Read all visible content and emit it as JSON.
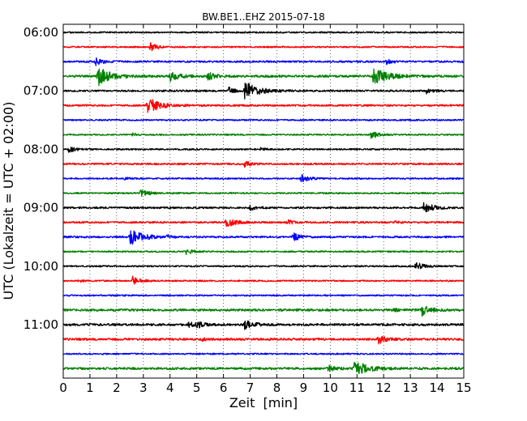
{
  "chart_data": {
    "type": "line",
    "title": "BW.BE1..EHZ 2015-07-18",
    "xlabel": "Zeit  [min]",
    "ylabel": "UTC (Lokalzeit = UTC + 02:00)",
    "xlim": [
      0,
      15
    ],
    "x_ticks": [
      "0",
      "1",
      "2",
      "3",
      "4",
      "5",
      "6",
      "7",
      "8",
      "9",
      "10",
      "11",
      "12",
      "13",
      "14",
      "15"
    ],
    "y_ticks": [
      {
        "row": 0,
        "label": "06:00"
      },
      {
        "row": 4,
        "label": "07:00"
      },
      {
        "row": 8,
        "label": "08:00"
      },
      {
        "row": 12,
        "label": "09:00"
      },
      {
        "row": 16,
        "label": "10:00"
      },
      {
        "row": 20,
        "label": "11:00"
      }
    ],
    "grid": "vertical dotted",
    "colors": [
      "#000000",
      "#ff0000",
      "#0000ff",
      "#008000"
    ],
    "series": [
      {
        "row": 0,
        "start": "06:00",
        "color": "#000000",
        "noise": 1.0,
        "events": []
      },
      {
        "row": 1,
        "start": "06:15",
        "color": "#ff0000",
        "noise": 1.0,
        "events": [
          [
            3.25,
            5
          ]
        ]
      },
      {
        "row": 2,
        "start": "06:30",
        "color": "#0000ff",
        "noise": 1.2,
        "events": [
          [
            1.2,
            5
          ],
          [
            12.1,
            3
          ]
        ]
      },
      {
        "row": 3,
        "start": "06:45",
        "color": "#008000",
        "noise": 1.5,
        "events": [
          [
            1.3,
            11
          ],
          [
            4.0,
            6
          ],
          [
            5.4,
            5
          ],
          [
            11.6,
            11
          ]
        ]
      },
      {
        "row": 4,
        "start": "07:00",
        "color": "#000000",
        "noise": 1.2,
        "events": [
          [
            6.8,
            11
          ],
          [
            6.2,
            4
          ],
          [
            13.6,
            3
          ]
        ]
      },
      {
        "row": 5,
        "start": "07:15",
        "color": "#ff0000",
        "noise": 1.2,
        "events": [
          [
            3.15,
            10
          ]
        ]
      },
      {
        "row": 6,
        "start": "07:30",
        "color": "#0000ff",
        "noise": 1.0,
        "events": []
      },
      {
        "row": 7,
        "start": "07:45",
        "color": "#008000",
        "noise": 1.0,
        "events": [
          [
            11.5,
            5
          ],
          [
            2.6,
            2
          ]
        ]
      },
      {
        "row": 8,
        "start": "08:00",
        "color": "#000000",
        "noise": 1.0,
        "events": [
          [
            0.2,
            4
          ],
          [
            7.4,
            2
          ]
        ]
      },
      {
        "row": 9,
        "start": "08:15",
        "color": "#ff0000",
        "noise": 1.2,
        "events": [
          [
            6.8,
            4
          ]
        ]
      },
      {
        "row": 10,
        "start": "08:30",
        "color": "#0000ff",
        "noise": 1.0,
        "events": [
          [
            8.9,
            5
          ],
          [
            2.3,
            2
          ]
        ]
      },
      {
        "row": 11,
        "start": "08:45",
        "color": "#008000",
        "noise": 1.0,
        "events": [
          [
            2.9,
            5
          ]
        ]
      },
      {
        "row": 12,
        "start": "09:00",
        "color": "#000000",
        "noise": 1.2,
        "events": [
          [
            13.5,
            7
          ],
          [
            7.0,
            3
          ]
        ]
      },
      {
        "row": 13,
        "start": "09:15",
        "color": "#ff0000",
        "noise": 1.2,
        "events": [
          [
            6.1,
            6
          ],
          [
            8.4,
            3
          ],
          [
            12.4,
            2
          ]
        ]
      },
      {
        "row": 14,
        "start": "09:30",
        "color": "#0000ff",
        "noise": 1.2,
        "events": [
          [
            2.5,
            10
          ],
          [
            8.6,
            5
          ],
          [
            3.9,
            2
          ]
        ]
      },
      {
        "row": 15,
        "start": "09:45",
        "color": "#008000",
        "noise": 1.0,
        "events": [
          [
            4.6,
            4
          ]
        ]
      },
      {
        "row": 16,
        "start": "10:00",
        "color": "#000000",
        "noise": 1.0,
        "events": [
          [
            13.2,
            5
          ]
        ]
      },
      {
        "row": 17,
        "start": "10:15",
        "color": "#ff0000",
        "noise": 1.0,
        "events": [
          [
            2.6,
            5
          ],
          [
            0.6,
            2
          ]
        ]
      },
      {
        "row": 18,
        "start": "10:30",
        "color": "#0000ff",
        "noise": 1.0,
        "events": []
      },
      {
        "row": 19,
        "start": "10:45",
        "color": "#008000",
        "noise": 1.5,
        "events": [
          [
            13.4,
            7
          ],
          [
            12.3,
            3
          ]
        ]
      },
      {
        "row": 20,
        "start": "11:00",
        "color": "#000000",
        "noise": 1.5,
        "events": [
          [
            6.8,
            6
          ],
          [
            5.0,
            4
          ],
          [
            4.7,
            3
          ]
        ]
      },
      {
        "row": 21,
        "start": "11:15",
        "color": "#ff0000",
        "noise": 1.5,
        "events": [
          [
            11.8,
            5
          ],
          [
            5.2,
            2
          ]
        ]
      },
      {
        "row": 22,
        "start": "11:30",
        "color": "#0000ff",
        "noise": 1.0,
        "events": []
      },
      {
        "row": 23,
        "start": "11:45",
        "color": "#008000",
        "noise": 1.5,
        "events": [
          [
            10.9,
            10
          ],
          [
            9.9,
            4
          ]
        ]
      }
    ]
  }
}
